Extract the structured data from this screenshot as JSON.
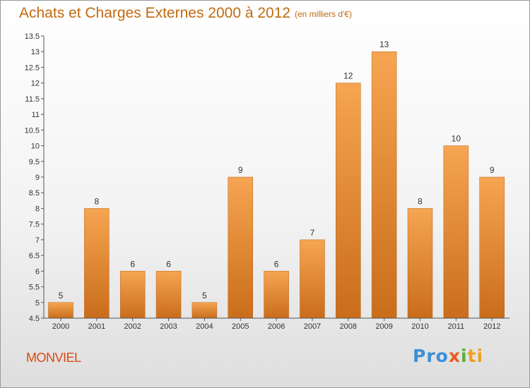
{
  "header": {
    "title": "Achats et Charges Externes 2000 à 2012",
    "unit": "(en milliers d'€)"
  },
  "footer": {
    "commune": "MONVIEL",
    "brand": {
      "p1": "Pro",
      "p2": "x",
      "p3": "i",
      "p4": "ti"
    }
  },
  "colors": {
    "bar_light": "#f6a552",
    "bar_dark": "#c96d1b",
    "title": "#c06a10",
    "commune": "#d84a10"
  },
  "chart_data": {
    "type": "bar",
    "title": "Achats et Charges Externes 2000 à 2012",
    "subtitle": "(en milliers d'€)",
    "categories": [
      "2000",
      "2001",
      "2002",
      "2003",
      "2004",
      "2005",
      "2006",
      "2007",
      "2008",
      "2009",
      "2010",
      "2011",
      "2012"
    ],
    "values": [
      5,
      8,
      6,
      6,
      5,
      9,
      6,
      7,
      12,
      13,
      8,
      10,
      9
    ],
    "ylim": [
      4.5,
      13.5
    ],
    "yticks": [
      "4.5",
      "5",
      "5.5",
      "6",
      "6.5",
      "7",
      "7.5",
      "8",
      "8.5",
      "9",
      "9.5",
      "10",
      "10.5",
      "11",
      "11.5",
      "12",
      "12.5",
      "13",
      "13.5"
    ],
    "grid": false,
    "legend": "none"
  }
}
